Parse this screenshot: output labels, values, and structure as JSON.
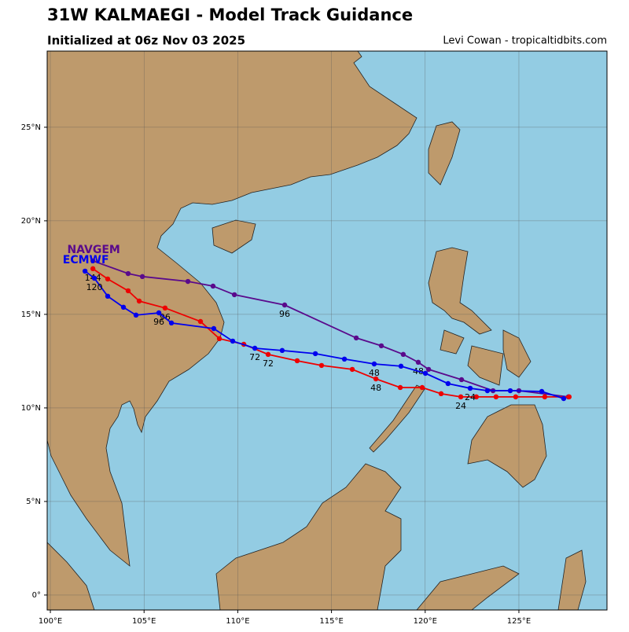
{
  "chart_data": {
    "type": "track-map",
    "title": "31W KALMAEGI - Model Track Guidance",
    "subtitle": "Initialized at 06z Nov 03 2025",
    "credit": "Levi Cowan - tropicaltidbits.com",
    "xlim": [
      99.83,
      129.7
    ],
    "ylim": [
      -0.8,
      29.07
    ],
    "xticks": [
      {
        "value": 100,
        "label": "100°E"
      },
      {
        "value": 105,
        "label": "105°E"
      },
      {
        "value": 110,
        "label": "110°E"
      },
      {
        "value": 115,
        "label": "115°E"
      },
      {
        "value": 120,
        "label": "120°E"
      },
      {
        "value": 125,
        "label": "125°E"
      }
    ],
    "yticks": [
      {
        "value": 0,
        "label": "0°"
      },
      {
        "value": 5,
        "label": "5°N"
      },
      {
        "value": 10,
        "label": "10°N"
      },
      {
        "value": 15,
        "label": "15°N"
      },
      {
        "value": 20,
        "label": "20°N"
      },
      {
        "value": 25,
        "label": "25°N"
      }
    ],
    "grid": true,
    "series": [
      {
        "name": "NAVGEM",
        "color": "#5a0a8c",
        "x": [
          127.64,
          125.0,
          123.62,
          121.94,
          120.18,
          119.63,
          118.83,
          117.66,
          116.32,
          112.5,
          109.82,
          108.68,
          107.34,
          104.91,
          104.15,
          102.27
        ],
        "values": [
          10.59,
          10.92,
          10.92,
          11.51,
          12.06,
          12.44,
          12.86,
          13.32,
          13.74,
          15.5,
          16.05,
          16.51,
          16.76,
          17.02,
          17.18,
          17.86
        ],
        "point_labels": [
          null,
          null,
          null,
          null,
          null,
          "48",
          null,
          null,
          null,
          "96",
          null,
          null,
          null,
          null,
          null,
          null
        ]
      },
      {
        "color": "#ee0000",
        "x": [
          127.68,
          126.38,
          124.83,
          123.78,
          122.73,
          121.9,
          120.85,
          119.84,
          118.67,
          117.37,
          116.11,
          114.47,
          113.17,
          111.62,
          110.32,
          109.02,
          108.01,
          106.12,
          104.74,
          104.15,
          103.06,
          102.27
        ],
        "values": [
          10.59,
          10.59,
          10.59,
          10.59,
          10.59,
          10.59,
          10.76,
          11.09,
          11.09,
          11.55,
          12.06,
          12.27,
          12.52,
          12.86,
          13.4,
          13.7,
          14.62,
          15.34,
          15.71,
          16.26,
          16.89,
          17.44
        ],
        "point_labels": [
          null,
          null,
          null,
          null,
          null,
          "24",
          null,
          null,
          null,
          "48",
          null,
          null,
          null,
          "72",
          null,
          null,
          null,
          "96",
          null,
          null,
          null,
          "144"
        ]
      },
      {
        "name": "ECMWF",
        "color": "#0000ee",
        "x": [
          127.39,
          126.22,
          124.54,
          123.32,
          122.4,
          121.22,
          120.01,
          118.71,
          117.28,
          115.69,
          114.14,
          112.37,
          110.91,
          109.73,
          108.72,
          106.46,
          105.79,
          104.57,
          103.9,
          103.06,
          102.35,
          101.85
        ],
        "values": [
          10.5,
          10.88,
          10.92,
          10.92,
          11.05,
          11.3,
          11.85,
          12.23,
          12.35,
          12.61,
          12.9,
          13.07,
          13.19,
          13.57,
          14.24,
          14.54,
          15.08,
          14.96,
          15.38,
          15.97,
          16.93,
          17.31
        ],
        "point_labels": [
          null,
          null,
          null,
          null,
          "24",
          null,
          null,
          null,
          "48",
          null,
          null,
          null,
          "72",
          null,
          null,
          null,
          "96",
          null,
          null,
          null,
          "120",
          null
        ]
      }
    ]
  }
}
